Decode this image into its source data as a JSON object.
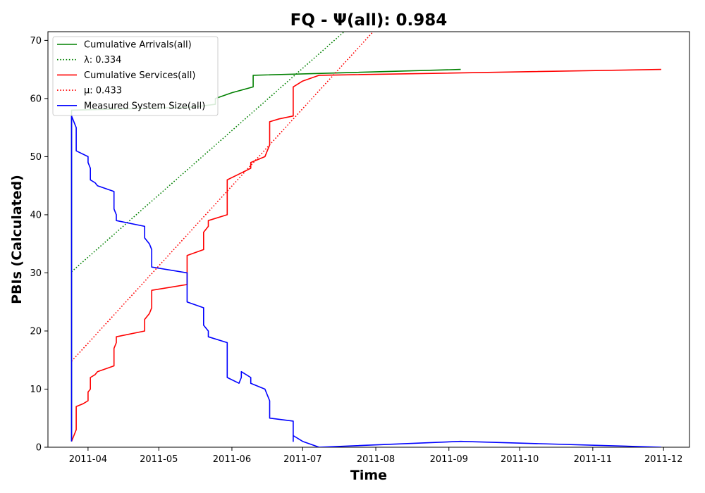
{
  "chart_data": {
    "type": "line",
    "title": "FQ -  Ψ(all): 0.984",
    "xlabel": "Time",
    "ylabel": "PBIs (Calculated)",
    "xlim": [
      "2011-03-15",
      "2011-12-12"
    ],
    "ylim": [
      0,
      71.5
    ],
    "grid": false,
    "legend_position": "top-left",
    "x_ticks": [
      "2011-04",
      "2011-05",
      "2011-06",
      "2011-07",
      "2011-08",
      "2011-09",
      "2011-10",
      "2011-11",
      "2011-12"
    ],
    "y_ticks": [
      0,
      10,
      20,
      30,
      40,
      50,
      60,
      70
    ],
    "series": [
      {
        "name": "Cumulative Arrivals(all)",
        "color": "#008000",
        "style": "solid",
        "points": [
          [
            "2011-03-25",
            1
          ],
          [
            "2011-03-25",
            58
          ],
          [
            "2011-05-15",
            58.5
          ],
          [
            "2011-05-25",
            59
          ],
          [
            "2011-05-25",
            60
          ],
          [
            "2011-06-01",
            61
          ],
          [
            "2011-06-10",
            62
          ],
          [
            "2011-06-10",
            64
          ],
          [
            "2011-09-06",
            65
          ]
        ]
      },
      {
        "name": "λ: 0.334",
        "color": "#008000",
        "style": "dotted",
        "points": [
          [
            "2011-03-25",
            30.2
          ],
          [
            "2011-07-20",
            72
          ]
        ]
      },
      {
        "name": "Cumulative Services(all)",
        "color": "#ff0000",
        "style": "solid",
        "points": [
          [
            "2011-03-25",
            1
          ],
          [
            "2011-03-26",
            2
          ],
          [
            "2011-03-27",
            3
          ],
          [
            "2011-03-27",
            7
          ],
          [
            "2011-03-30",
            7.5
          ],
          [
            "2011-04-01",
            8
          ],
          [
            "2011-04-01",
            9.5
          ],
          [
            "2011-04-02",
            10
          ],
          [
            "2011-04-02",
            12
          ],
          [
            "2011-04-04",
            12.5
          ],
          [
            "2011-04-05",
            13
          ],
          [
            "2011-04-12",
            14
          ],
          [
            "2011-04-12",
            17
          ],
          [
            "2011-04-13",
            18
          ],
          [
            "2011-04-13",
            19
          ],
          [
            "2011-04-25",
            20
          ],
          [
            "2011-04-25",
            22
          ],
          [
            "2011-04-27",
            23
          ],
          [
            "2011-04-28",
            24
          ],
          [
            "2011-04-28",
            27
          ],
          [
            "2011-05-13",
            28
          ],
          [
            "2011-05-13",
            33
          ],
          [
            "2011-05-20",
            34
          ],
          [
            "2011-05-20",
            37
          ],
          [
            "2011-05-22",
            38
          ],
          [
            "2011-05-22",
            39
          ],
          [
            "2011-05-30",
            40
          ],
          [
            "2011-05-30",
            46
          ],
          [
            "2011-06-04",
            47
          ],
          [
            "2011-06-09",
            48
          ],
          [
            "2011-06-09",
            49
          ],
          [
            "2011-06-15",
            50
          ],
          [
            "2011-06-16",
            51
          ],
          [
            "2011-06-17",
            52
          ],
          [
            "2011-06-17",
            53
          ],
          [
            "2011-06-17",
            56
          ],
          [
            "2011-06-21",
            56.5
          ],
          [
            "2011-06-27",
            57
          ],
          [
            "2011-06-27",
            62
          ],
          [
            "2011-07-01",
            63
          ],
          [
            "2011-07-08",
            64
          ],
          [
            "2011-11-30",
            65
          ]
        ]
      },
      {
        "name": "μ: 0.433",
        "color": "#ff0000",
        "style": "dotted",
        "points": [
          [
            "2011-03-25",
            14.8
          ],
          [
            "2011-08-01",
            72
          ]
        ]
      },
      {
        "name": "Measured System Size(all)",
        "color": "#0000ff",
        "style": "solid",
        "points": [
          [
            "2011-03-25",
            1
          ],
          [
            "2011-03-25",
            57
          ],
          [
            "2011-03-26",
            56
          ],
          [
            "2011-03-27",
            55
          ],
          [
            "2011-03-27",
            51
          ],
          [
            "2011-04-01",
            50
          ],
          [
            "2011-04-01",
            49
          ],
          [
            "2011-04-02",
            48
          ],
          [
            "2011-04-02",
            46
          ],
          [
            "2011-04-04",
            45.5
          ],
          [
            "2011-04-05",
            45
          ],
          [
            "2011-04-12",
            44
          ],
          [
            "2011-04-12",
            41
          ],
          [
            "2011-04-13",
            40
          ],
          [
            "2011-04-13",
            39
          ],
          [
            "2011-04-25",
            38
          ],
          [
            "2011-04-25",
            36
          ],
          [
            "2011-04-27",
            35
          ],
          [
            "2011-04-28",
            34
          ],
          [
            "2011-04-28",
            31
          ],
          [
            "2011-05-13",
            30
          ],
          [
            "2011-05-13",
            25
          ],
          [
            "2011-05-20",
            24
          ],
          [
            "2011-05-20",
            21
          ],
          [
            "2011-05-22",
            20
          ],
          [
            "2011-05-22",
            19
          ],
          [
            "2011-05-30",
            18
          ],
          [
            "2011-05-30",
            12
          ],
          [
            "2011-06-04",
            11
          ],
          [
            "2011-06-05",
            12
          ],
          [
            "2011-06-05",
            13
          ],
          [
            "2011-06-09",
            12
          ],
          [
            "2011-06-09",
            11
          ],
          [
            "2011-06-15",
            10
          ],
          [
            "2011-06-16",
            9
          ],
          [
            "2011-06-17",
            8
          ],
          [
            "2011-06-17",
            7
          ],
          [
            "2011-06-17",
            5
          ],
          [
            "2011-06-27",
            4.5
          ],
          [
            "2011-06-27",
            1
          ],
          [
            "2011-06-27",
            2
          ],
          [
            "2011-07-01",
            1
          ],
          [
            "2011-07-08",
            0
          ],
          [
            "2011-09-06",
            1
          ],
          [
            "2011-11-30",
            0
          ]
        ]
      }
    ]
  }
}
